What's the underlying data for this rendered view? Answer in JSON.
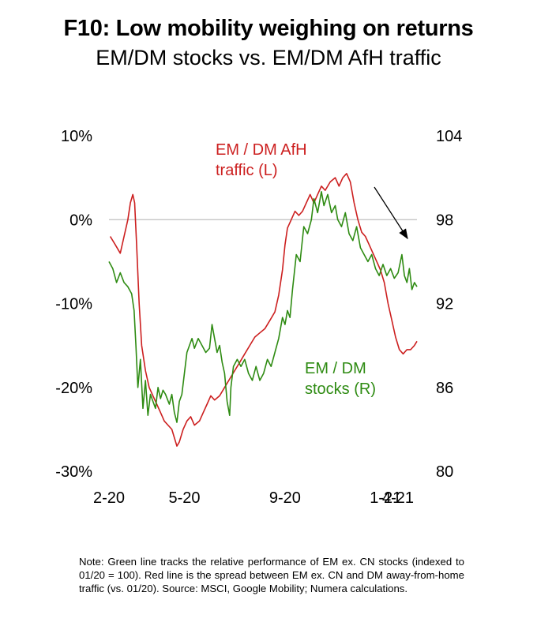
{
  "title": "F10: Low mobility weighing on returns",
  "subtitle": "EM/DM stocks vs. EM/DM AfH traffic",
  "note": "Note: Green line tracks the relative performance of EM ex. CN stocks (indexed to 01/20 = 100). Red line is the spread between EM ex. CN and DM away-from-home traffic (vs. 01/20). Source: MSCI, Google Mobility; Numera calculations.",
  "colors": {
    "red_series": "#cc1f1f",
    "green_series": "#2e8b12",
    "zero_line": "#bfbfbf",
    "arrow": "#000000"
  },
  "chart_data": {
    "type": "line",
    "x_tick_labels": [
      "2-20",
      "5-20",
      "9-20",
      "1-21",
      "4-21"
    ],
    "left_axis": {
      "ticks": [
        "10%",
        "0%",
        "-10%",
        "-20%",
        "-30%"
      ],
      "ylim": [
        -30,
        10
      ],
      "unit": "%"
    },
    "right_axis": {
      "ticks": [
        "104",
        "98",
        "92",
        "86",
        "80"
      ],
      "ylim": [
        80,
        104
      ]
    },
    "reference_line": {
      "axis": "left",
      "value": 0
    },
    "annotations": [
      {
        "lines": [
          "EM / DM AfH",
          "traffic (L)"
        ],
        "series": "EM / DM AfH traffic",
        "color": "#cc1f1f"
      },
      {
        "lines": [
          "EM / DM",
          "stocks (R)"
        ],
        "series": "EM / DM stocks",
        "color": "#2e8b12"
      }
    ],
    "series": [
      {
        "name": "EM / DM AfH traffic",
        "axis": "left",
        "color": "#cc1f1f",
        "points": [
          [
            0.05,
            -2
          ],
          [
            0.25,
            -3
          ],
          [
            0.45,
            -4
          ],
          [
            0.6,
            -2
          ],
          [
            0.75,
            0
          ],
          [
            0.85,
            2
          ],
          [
            0.95,
            3
          ],
          [
            1.02,
            2
          ],
          [
            1.1,
            -3
          ],
          [
            1.2,
            -10
          ],
          [
            1.3,
            -15
          ],
          [
            1.45,
            -18
          ],
          [
            1.6,
            -20
          ],
          [
            1.75,
            -21
          ],
          [
            1.9,
            -22
          ],
          [
            2.05,
            -23
          ],
          [
            2.2,
            -24
          ],
          [
            2.35,
            -24.5
          ],
          [
            2.5,
            -25
          ],
          [
            2.6,
            -26
          ],
          [
            2.7,
            -27
          ],
          [
            2.8,
            -26.5
          ],
          [
            2.95,
            -25
          ],
          [
            3.1,
            -24
          ],
          [
            3.25,
            -23.5
          ],
          [
            3.4,
            -24.5
          ],
          [
            3.6,
            -24
          ],
          [
            3.75,
            -23
          ],
          [
            3.9,
            -22
          ],
          [
            4.05,
            -21
          ],
          [
            4.2,
            -21.5
          ],
          [
            4.4,
            -21
          ],
          [
            4.6,
            -20
          ],
          [
            4.8,
            -19
          ],
          [
            5.0,
            -18
          ],
          [
            5.2,
            -17
          ],
          [
            5.4,
            -16
          ],
          [
            5.6,
            -15
          ],
          [
            5.8,
            -14
          ],
          [
            6.0,
            -13.5
          ],
          [
            6.2,
            -13
          ],
          [
            6.4,
            -12
          ],
          [
            6.6,
            -11
          ],
          [
            6.75,
            -9
          ],
          [
            6.9,
            -6
          ],
          [
            7.0,
            -3
          ],
          [
            7.1,
            -1
          ],
          [
            7.25,
            0
          ],
          [
            7.4,
            1
          ],
          [
            7.55,
            0.5
          ],
          [
            7.7,
            1
          ],
          [
            7.85,
            2
          ],
          [
            8.0,
            3
          ],
          [
            8.15,
            2
          ],
          [
            8.3,
            3
          ],
          [
            8.45,
            4
          ],
          [
            8.6,
            3.5
          ],
          [
            8.8,
            4.5
          ],
          [
            9.0,
            5
          ],
          [
            9.15,
            4
          ],
          [
            9.3,
            5
          ],
          [
            9.45,
            5.5
          ],
          [
            9.6,
            4.5
          ],
          [
            9.75,
            2
          ],
          [
            9.9,
            0
          ],
          [
            10.05,
            -1.5
          ],
          [
            10.2,
            -2
          ],
          [
            10.35,
            -3
          ],
          [
            10.5,
            -4
          ],
          [
            10.65,
            -5
          ],
          [
            10.8,
            -6
          ],
          [
            10.95,
            -7.5
          ],
          [
            11.1,
            -10
          ],
          [
            11.25,
            -12
          ],
          [
            11.4,
            -14
          ],
          [
            11.55,
            -15.5
          ],
          [
            11.7,
            -16
          ],
          [
            11.85,
            -15.5
          ],
          [
            12.0,
            -15.5
          ],
          [
            12.15,
            -15
          ],
          [
            12.25,
            -14.5
          ]
        ]
      },
      {
        "name": "EM / DM stocks",
        "axis": "right",
        "color": "#2e8b12",
        "points": [
          [
            0.0,
            95
          ],
          [
            0.15,
            94.5
          ],
          [
            0.3,
            93.5
          ],
          [
            0.45,
            94.2
          ],
          [
            0.6,
            93.5
          ],
          [
            0.75,
            93.2
          ],
          [
            0.9,
            92.7
          ],
          [
            1.0,
            91.5
          ],
          [
            1.07,
            89
          ],
          [
            1.15,
            86
          ],
          [
            1.25,
            88
          ],
          [
            1.35,
            84.5
          ],
          [
            1.45,
            86.5
          ],
          [
            1.55,
            84
          ],
          [
            1.65,
            85.5
          ],
          [
            1.75,
            85
          ],
          [
            1.85,
            84.5
          ],
          [
            1.95,
            86
          ],
          [
            2.05,
            85.2
          ],
          [
            2.15,
            85.8
          ],
          [
            2.25,
            85.5
          ],
          [
            2.4,
            84.8
          ],
          [
            2.5,
            85.5
          ],
          [
            2.6,
            84.2
          ],
          [
            2.7,
            83.5
          ],
          [
            2.8,
            85
          ],
          [
            2.9,
            85.5
          ],
          [
            3.0,
            87
          ],
          [
            3.1,
            88.5
          ],
          [
            3.2,
            89
          ],
          [
            3.3,
            89.5
          ],
          [
            3.4,
            88.8
          ],
          [
            3.55,
            89.5
          ],
          [
            3.7,
            89
          ],
          [
            3.85,
            88.5
          ],
          [
            4.0,
            88.8
          ],
          [
            4.1,
            90.5
          ],
          [
            4.2,
            89.5
          ],
          [
            4.3,
            88.5
          ],
          [
            4.4,
            89
          ],
          [
            4.5,
            87.8
          ],
          [
            4.6,
            87
          ],
          [
            4.7,
            85
          ],
          [
            4.8,
            84
          ],
          [
            4.85,
            86
          ],
          [
            4.95,
            87.5
          ],
          [
            5.1,
            88
          ],
          [
            5.25,
            87.5
          ],
          [
            5.4,
            88
          ],
          [
            5.55,
            87
          ],
          [
            5.7,
            86.5
          ],
          [
            5.85,
            87.5
          ],
          [
            6.0,
            86.5
          ],
          [
            6.15,
            87
          ],
          [
            6.3,
            88
          ],
          [
            6.45,
            87.5
          ],
          [
            6.6,
            88.5
          ],
          [
            6.75,
            89.5
          ],
          [
            6.9,
            91
          ],
          [
            7.0,
            90.5
          ],
          [
            7.1,
            91.5
          ],
          [
            7.2,
            91
          ],
          [
            7.3,
            93
          ],
          [
            7.45,
            95.5
          ],
          [
            7.6,
            95
          ],
          [
            7.75,
            97.5
          ],
          [
            7.9,
            97
          ],
          [
            8.05,
            98
          ],
          [
            8.15,
            99.5
          ],
          [
            8.3,
            98.5
          ],
          [
            8.45,
            100
          ],
          [
            8.55,
            99
          ],
          [
            8.7,
            99.8
          ],
          [
            8.85,
            98.5
          ],
          [
            9.0,
            99
          ],
          [
            9.1,
            98
          ],
          [
            9.25,
            97.5
          ],
          [
            9.4,
            98.5
          ],
          [
            9.55,
            97
          ],
          [
            9.7,
            96.5
          ],
          [
            9.85,
            97.5
          ],
          [
            10.0,
            96
          ],
          [
            10.15,
            95.5
          ],
          [
            10.3,
            95
          ],
          [
            10.45,
            95.5
          ],
          [
            10.6,
            94.5
          ],
          [
            10.75,
            94
          ],
          [
            10.9,
            94.8
          ],
          [
            11.05,
            94
          ],
          [
            11.2,
            94.5
          ],
          [
            11.35,
            93.8
          ],
          [
            11.5,
            94.2
          ],
          [
            11.65,
            95.5
          ],
          [
            11.75,
            94
          ],
          [
            11.85,
            93.5
          ],
          [
            11.95,
            94.5
          ],
          [
            12.05,
            93
          ],
          [
            12.15,
            93.5
          ],
          [
            12.25,
            93.2
          ]
        ]
      }
    ]
  }
}
